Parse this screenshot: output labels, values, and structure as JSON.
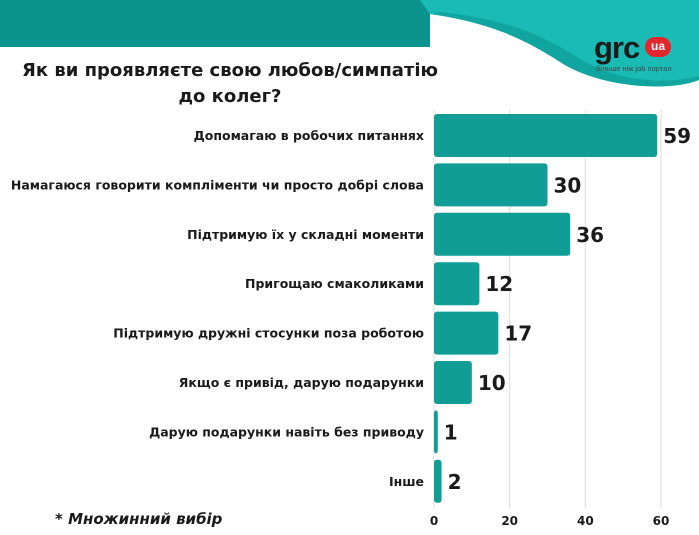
{
  "header": {
    "title_line1": "Як ви проявляєте свою любов/симпатію",
    "title_line2": "до колег?"
  },
  "logo": {
    "text": "grc",
    "badge": "ua",
    "tagline": "більше ніж job портал"
  },
  "footnote": "* Множинний вибір",
  "colors": {
    "bar": "#0f9d96",
    "banner_dark": "#0b948e",
    "banner_light": "#19bbb4",
    "grid": "#dcdcdc",
    "text": "#1a1a1a"
  },
  "chart_data": {
    "type": "bar",
    "orientation": "horizontal",
    "title": "Як ви проявляєте свою любов/симпатію до колег?",
    "categories": [
      "Допомагаю в робочих питаннях",
      "Намагаюся говорити компліменти чи просто добрі слова",
      "Підтримую їх у складні моменти",
      "Пригощаю смаколиками",
      "Підтримую дружні стосунки поза роботою",
      "Якщо є привід, дарую подарунки",
      "Дарую подарунки навіть без приводу",
      "Інше"
    ],
    "values": [
      59,
      30,
      36,
      12,
      17,
      10,
      1,
      2
    ],
    "xlim": [
      0,
      60
    ],
    "xticks": [
      0,
      20,
      40,
      60
    ],
    "grid": true,
    "xlabel": "",
    "ylabel": ""
  }
}
